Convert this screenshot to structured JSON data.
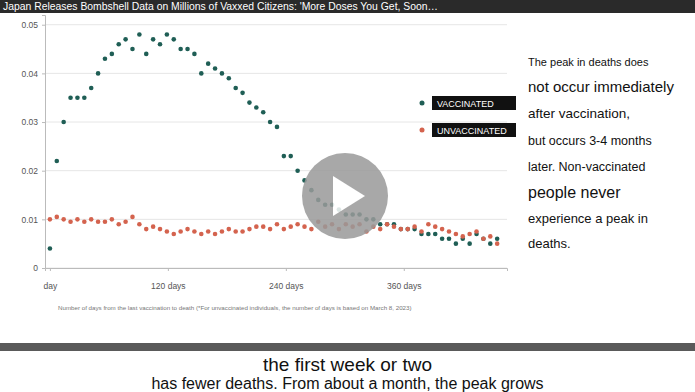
{
  "chart_data": {
    "type": "scatter",
    "title": "Japan Releases Bombshell Data on Millions of Vaxxed Citizens: 'More Doses You Get, Soon…",
    "subtitle": [
      "the first week or two",
      "has fewer deaths. From about a month, the peak grows"
    ],
    "annotations": [
      "The peak in deaths does",
      "not occur immediately",
      "after vaccination,",
      "but occurs 3-4 months",
      "later. Non-vaccinated",
      "people never",
      "experience a peak in",
      "deaths."
    ],
    "x_label": "Number of days from the last vaccination to death (*For unvaccinated individuals, the number of days is based on March 8, 2023)",
    "x": [
      0,
      7,
      14,
      21,
      28,
      35,
      42,
      49,
      56,
      63,
      70,
      77,
      84,
      91,
      98,
      105,
      112,
      119,
      126,
      133,
      140,
      147,
      154,
      161,
      168,
      175,
      182,
      189,
      196,
      203,
      210,
      217,
      224,
      231,
      238,
      245,
      252,
      259,
      266,
      273,
      280,
      287,
      294,
      301,
      308,
      315,
      322,
      329,
      336,
      343,
      350,
      357,
      364,
      371,
      378,
      385,
      392,
      399,
      406,
      413,
      420,
      427,
      434,
      441,
      448,
      455
    ],
    "series": [
      {
        "name": "VACCINATED",
        "color": "#1f5e55",
        "marker": "circle",
        "values": [
          0.004,
          0.022,
          0.03,
          0.035,
          0.035,
          0.035,
          0.037,
          0.04,
          0.043,
          0.044,
          0.046,
          0.047,
          0.045,
          0.048,
          0.044,
          0.047,
          0.046,
          0.048,
          0.047,
          0.045,
          0.045,
          0.044,
          0.04,
          0.042,
          0.041,
          0.04,
          0.039,
          0.037,
          0.036,
          0.034,
          0.033,
          0.032,
          0.03,
          0.029,
          0.023,
          0.023,
          0.02,
          0.018,
          0.016,
          0.014,
          0.013,
          0.013,
          0.012,
          0.011,
          0.011,
          0.011,
          0.01,
          0.01,
          0.009,
          0.009,
          0.009,
          0.008,
          0.008,
          0.008,
          0.007,
          0.007,
          0.007,
          0.006,
          0.006,
          0.005,
          0.006,
          0.005,
          0.007,
          0.006,
          0.005,
          0.006
        ]
      },
      {
        "name": "UNVACCINATED",
        "color": "#d4634e",
        "marker": "circle",
        "values": [
          0.01,
          0.0105,
          0.01,
          0.0095,
          0.01,
          0.0095,
          0.01,
          0.0095,
          0.0095,
          0.01,
          0.009,
          0.0095,
          0.0105,
          0.009,
          0.008,
          0.0085,
          0.008,
          0.0075,
          0.007,
          0.0075,
          0.008,
          0.0075,
          0.007,
          0.0075,
          0.007,
          0.0075,
          0.008,
          0.0075,
          0.0075,
          0.008,
          0.0085,
          0.0085,
          0.008,
          0.009,
          0.008,
          0.0085,
          0.009,
          0.0085,
          0.008,
          0.0095,
          0.0085,
          0.009,
          0.008,
          0.009,
          0.0085,
          0.009,
          0.0075,
          0.0085,
          0.008,
          0.009,
          0.0085,
          0.008,
          0.008,
          0.0085,
          0.0075,
          0.009,
          0.0085,
          0.008,
          0.0075,
          0.007,
          0.0065,
          0.007,
          0.0075,
          0.006,
          0.0065,
          0.005
        ]
      }
    ],
    "xlim": [
      -5,
      465
    ],
    "xticks": [
      {
        "value": 0,
        "label": "day"
      },
      {
        "value": 120,
        "label": "120 days"
      },
      {
        "value": 240,
        "label": "240 days"
      },
      {
        "value": 360,
        "label": "360 days"
      }
    ],
    "ylim": [
      0,
      0.052
    ],
    "yticks": [
      0,
      0.01,
      0.02,
      0.03,
      0.04,
      0.05
    ],
    "grid": true,
    "legend": "right"
  }
}
